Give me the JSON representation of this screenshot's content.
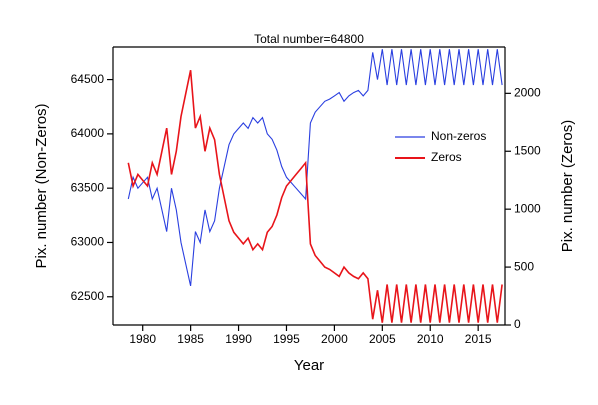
{
  "chart_data": {
    "type": "line",
    "title": "Total number=64800",
    "reference_line": 64800,
    "x_label": "Year",
    "y_label": "Pix. number (Non-Zeros)",
    "y2_label": "Pix. number (Zeros)",
    "xlim": [
      1976.9,
      2017.8
    ],
    "xticks": [
      1980,
      1985,
      1990,
      1995,
      2000,
      2005,
      2010,
      2015
    ],
    "ylim": [
      62240,
      64800
    ],
    "yticks": [
      62500,
      63000,
      63500,
      64000,
      64500
    ],
    "y2lim": [
      0,
      2400
    ],
    "y2ticks": [
      0,
      500,
      1000,
      1500,
      2000
    ],
    "legend": "right",
    "x": [
      1978.5,
      1979,
      1979.5,
      1980,
      1980.5,
      1981,
      1981.5,
      1982,
      1982.5,
      1983,
      1983.5,
      1984,
      1984.5,
      1985,
      1985.5,
      1986,
      1986.5,
      1987,
      1987.5,
      1988,
      1988.5,
      1989,
      1989.5,
      1990,
      1990.5,
      1991,
      1991.5,
      1992,
      1992.5,
      1993,
      1993.5,
      1994,
      1994.5,
      1995,
      1995.5,
      1996,
      1996.5,
      1997,
      1997.5,
      1998,
      1998.5,
      1999,
      1999.5,
      2000,
      2000.5,
      2001,
      2001.5,
      2002,
      2002.5,
      2003,
      2003.5,
      2004,
      2004.5,
      2005,
      2005.5,
      2006,
      2006.5,
      2007,
      2007.5,
      2008,
      2008.5,
      2009,
      2009.5,
      2010,
      2010.5,
      2011,
      2011.5,
      2012,
      2012.5,
      2013,
      2013.5,
      2014,
      2014.5,
      2015,
      2015.5,
      2016,
      2016.5,
      2017,
      2017.5
    ],
    "series": [
      {
        "name": "Non-zeros",
        "color": "#2a3fe0",
        "axis": "y",
        "values": [
          63400,
          63600,
          63500,
          63550,
          63600,
          63400,
          63500,
          63300,
          63100,
          63500,
          63300,
          63000,
          62800,
          62600,
          63100,
          63000,
          63300,
          63100,
          63200,
          63500,
          63700,
          63900,
          64000,
          64050,
          64100,
          64050,
          64150,
          64100,
          64150,
          64000,
          63950,
          63850,
          63700,
          63600,
          63550,
          63500,
          63450,
          63400,
          64100,
          64200,
          64250,
          64300,
          64320,
          64350,
          64380,
          64300,
          64350,
          64380,
          64400,
          64350,
          64400,
          64750,
          64500,
          64780,
          64450,
          64780,
          64450,
          64780,
          64450,
          64780,
          64450,
          64780,
          64450,
          64780,
          64450,
          64780,
          64450,
          64780,
          64450,
          64780,
          64450,
          64780,
          64450,
          64780,
          64450,
          64780,
          64450,
          64780,
          64450
        ]
      },
      {
        "name": "Zeros",
        "color": "#e8141a",
        "axis": "y2",
        "values": [
          1400,
          1200,
          1300,
          1250,
          1200,
          1400,
          1300,
          1500,
          1700,
          1300,
          1500,
          1800,
          2000,
          2200,
          1700,
          1800,
          1500,
          1700,
          1600,
          1300,
          1100,
          900,
          800,
          750,
          700,
          750,
          650,
          700,
          650,
          800,
          850,
          950,
          1100,
          1200,
          1250,
          1300,
          1350,
          1400,
          700,
          600,
          550,
          500,
          480,
          450,
          420,
          500,
          450,
          420,
          400,
          450,
          400,
          50,
          300,
          20,
          350,
          20,
          350,
          20,
          350,
          20,
          350,
          20,
          350,
          20,
          350,
          20,
          350,
          20,
          350,
          20,
          350,
          20,
          350,
          20,
          350,
          20,
          350,
          20,
          350
        ]
      }
    ]
  }
}
